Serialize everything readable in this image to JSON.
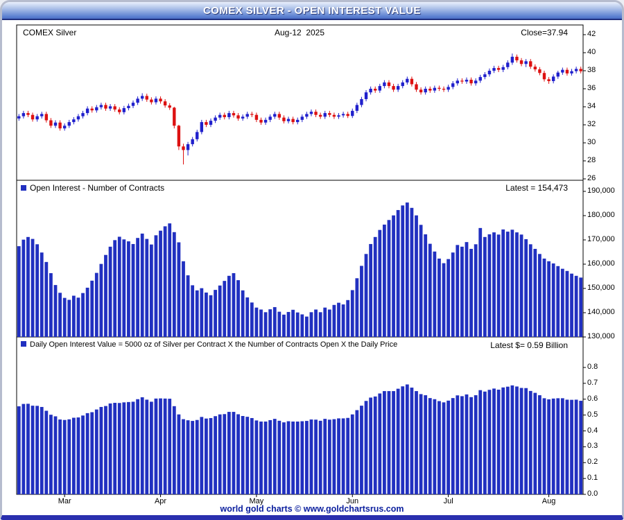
{
  "window": {
    "title": "COMEX SILVER - OPEN INTEREST VALUE"
  },
  "footer": {
    "text": "world gold charts © www.goldchartsrus.com"
  },
  "x_axis": {
    "n_points": 124,
    "month_labels": [
      "Mar",
      "Apr",
      "May",
      "Jun",
      "Jul",
      "Aug"
    ],
    "month_start_indices": [
      10,
      31,
      52,
      73,
      94,
      116
    ]
  },
  "chart_data": [
    {
      "type": "candlestick",
      "title": "COMEX Silver",
      "date_label": "Aug-12  2025",
      "close_label": "Close=37.94",
      "close": 37.94,
      "up_color": "#2020cc",
      "down_color": "#dd1111",
      "ylim": [
        26,
        42
      ],
      "y_axis": {
        "ticks": [
          [
            42,
            "42"
          ],
          [
            40,
            "40"
          ],
          [
            38,
            "38"
          ],
          [
            36,
            "36"
          ],
          [
            34,
            "34"
          ],
          [
            32,
            "32"
          ],
          [
            30,
            "30"
          ],
          [
            28,
            "28"
          ],
          [
            26,
            "26"
          ]
        ]
      },
      "candles": [
        [
          32.7,
          33.2,
          32.45,
          32.95
        ],
        [
          32.95,
          33.55,
          32.7,
          33.3
        ],
        [
          33.3,
          33.55,
          32.85,
          33.1
        ],
        [
          33.1,
          33.35,
          32.35,
          32.6
        ],
        [
          32.6,
          33.2,
          32.35,
          32.95
        ],
        [
          32.95,
          33.45,
          32.7,
          33.2
        ],
        [
          33.2,
          33.45,
          32.25,
          32.5
        ],
        [
          32.5,
          32.75,
          31.65,
          31.9
        ],
        [
          31.9,
          32.5,
          31.65,
          32.25
        ],
        [
          32.25,
          32.5,
          31.35,
          31.6
        ],
        [
          31.6,
          32.15,
          31.35,
          31.9
        ],
        [
          31.9,
          32.55,
          31.65,
          32.3
        ],
        [
          32.3,
          32.85,
          32.05,
          32.6
        ],
        [
          32.6,
          33.2,
          32.35,
          32.95
        ],
        [
          32.95,
          33.55,
          32.7,
          33.3
        ],
        [
          33.3,
          34.05,
          33.05,
          33.8
        ],
        [
          33.8,
          34.05,
          33.35,
          33.6
        ],
        [
          33.6,
          34.2,
          33.35,
          33.95
        ],
        [
          33.95,
          34.45,
          33.7,
          34.2
        ],
        [
          34.2,
          34.45,
          33.55,
          33.8
        ],
        [
          33.8,
          34.3,
          33.55,
          34.05
        ],
        [
          34.05,
          34.3,
          33.45,
          33.7
        ],
        [
          33.7,
          33.95,
          33.15,
          33.4
        ],
        [
          33.4,
          34.1,
          33.15,
          33.85
        ],
        [
          33.85,
          34.35,
          33.6,
          34.1
        ],
        [
          34.1,
          34.7,
          33.85,
          34.45
        ],
        [
          34.45,
          35.15,
          34.2,
          34.9
        ],
        [
          34.9,
          35.5,
          34.65,
          35.2
        ],
        [
          35.2,
          35.45,
          34.55,
          34.8
        ],
        [
          34.8,
          35.05,
          34.25,
          34.5
        ],
        [
          34.5,
          35.15,
          34.25,
          34.9
        ],
        [
          34.9,
          35.15,
          34.35,
          34.6
        ],
        [
          34.6,
          34.85,
          33.9,
          34.15
        ],
        [
          34.15,
          34.4,
          33.65,
          33.9
        ],
        [
          33.9,
          34.0,
          31.6,
          31.9
        ],
        [
          31.9,
          32.0,
          29.2,
          29.6
        ],
        [
          29.6,
          29.9,
          27.6,
          29.2
        ],
        [
          29.2,
          30.1,
          28.6,
          29.85
        ],
        [
          29.85,
          30.65,
          29.6,
          30.4
        ],
        [
          30.4,
          31.45,
          30.15,
          31.2
        ],
        [
          31.2,
          32.55,
          30.95,
          32.3
        ],
        [
          32.3,
          32.55,
          31.75,
          32.0
        ],
        [
          32.0,
          32.7,
          31.75,
          32.45
        ],
        [
          32.45,
          33.05,
          32.2,
          32.8
        ],
        [
          32.8,
          33.35,
          32.55,
          33.1
        ],
        [
          33.1,
          33.35,
          32.6,
          32.85
        ],
        [
          32.85,
          33.55,
          32.6,
          33.3
        ],
        [
          33.3,
          33.55,
          32.8,
          33.05
        ],
        [
          33.05,
          33.3,
          32.45,
          32.7
        ],
        [
          32.7,
          33.15,
          32.45,
          32.9
        ],
        [
          32.9,
          33.45,
          32.65,
          33.2
        ],
        [
          33.2,
          33.45,
          32.85,
          33.1
        ],
        [
          33.1,
          33.35,
          32.3,
          32.55
        ],
        [
          32.55,
          32.8,
          32.0,
          32.25
        ],
        [
          32.25,
          32.8,
          32.0,
          32.55
        ],
        [
          32.55,
          33.15,
          32.3,
          32.9
        ],
        [
          32.9,
          33.45,
          32.65,
          33.2
        ],
        [
          33.2,
          33.45,
          32.55,
          32.8
        ],
        [
          32.8,
          33.05,
          32.15,
          32.4
        ],
        [
          32.4,
          32.9,
          32.15,
          32.65
        ],
        [
          32.65,
          32.9,
          32.05,
          32.3
        ],
        [
          32.3,
          32.8,
          32.05,
          32.55
        ],
        [
          32.55,
          33.15,
          32.3,
          32.9
        ],
        [
          32.9,
          33.45,
          32.65,
          33.2
        ],
        [
          33.2,
          33.7,
          32.95,
          33.45
        ],
        [
          33.45,
          33.7,
          32.85,
          33.1
        ],
        [
          33.1,
          33.35,
          32.65,
          32.9
        ],
        [
          32.9,
          33.55,
          32.65,
          33.3
        ],
        [
          33.3,
          33.55,
          32.85,
          33.1
        ],
        [
          33.1,
          33.35,
          32.65,
          32.9
        ],
        [
          32.9,
          33.3,
          32.65,
          33.05
        ],
        [
          33.05,
          33.45,
          32.8,
          33.2
        ],
        [
          33.2,
          33.45,
          32.75,
          32.98
        ],
        [
          32.98,
          33.8,
          32.75,
          33.55
        ],
        [
          33.55,
          34.45,
          33.3,
          34.2
        ],
        [
          34.2,
          35.1,
          33.95,
          34.85
        ],
        [
          34.85,
          35.85,
          34.6,
          35.6
        ],
        [
          35.6,
          36.25,
          35.35,
          36.0
        ],
        [
          36.0,
          36.25,
          35.55,
          35.8
        ],
        [
          35.8,
          36.55,
          35.55,
          36.3
        ],
        [
          36.3,
          36.95,
          36.05,
          36.7
        ],
        [
          36.7,
          36.95,
          36.05,
          36.3
        ],
        [
          36.3,
          36.55,
          35.65,
          35.9
        ],
        [
          35.9,
          36.55,
          35.65,
          36.3
        ],
        [
          36.3,
          36.95,
          36.05,
          36.7
        ],
        [
          36.7,
          37.35,
          36.45,
          37.1
        ],
        [
          37.1,
          37.35,
          36.25,
          36.5
        ],
        [
          36.5,
          36.75,
          35.65,
          35.9
        ],
        [
          35.9,
          36.15,
          35.35,
          35.6
        ],
        [
          35.6,
          36.25,
          35.35,
          36.0
        ],
        [
          36.0,
          36.25,
          35.55,
          35.8
        ],
        [
          35.8,
          36.35,
          35.55,
          36.1
        ],
        [
          36.1,
          36.35,
          35.75,
          36.0
        ],
        [
          36.0,
          36.25,
          35.65,
          35.9
        ],
        [
          35.9,
          36.45,
          35.65,
          36.2
        ],
        [
          36.2,
          36.85,
          35.95,
          36.6
        ],
        [
          36.6,
          37.15,
          36.35,
          36.9
        ],
        [
          36.9,
          37.15,
          36.55,
          36.8
        ],
        [
          36.8,
          37.25,
          36.55,
          37.0
        ],
        [
          37.0,
          37.25,
          36.35,
          36.6
        ],
        [
          36.6,
          37.15,
          36.35,
          36.9
        ],
        [
          36.9,
          37.55,
          36.65,
          37.3
        ],
        [
          37.3,
          37.85,
          37.05,
          37.6
        ],
        [
          37.6,
          38.25,
          37.35,
          38.0
        ],
        [
          38.0,
          38.55,
          37.75,
          38.3
        ],
        [
          38.3,
          38.55,
          37.85,
          38.1
        ],
        [
          38.1,
          38.65,
          37.85,
          38.4
        ],
        [
          38.4,
          39.15,
          38.15,
          38.9
        ],
        [
          38.9,
          39.9,
          38.65,
          39.55
        ],
        [
          39.55,
          39.8,
          38.9,
          39.15
        ],
        [
          39.15,
          39.4,
          38.5,
          38.75
        ],
        [
          38.75,
          39.3,
          38.4,
          39.05
        ],
        [
          39.05,
          39.3,
          38.2,
          38.45
        ],
        [
          38.45,
          38.7,
          37.9,
          38.15
        ],
        [
          38.15,
          38.4,
          37.5,
          37.75
        ],
        [
          37.75,
          38.0,
          36.8,
          37.05
        ],
        [
          37.05,
          37.3,
          36.55,
          36.85
        ],
        [
          36.85,
          37.6,
          36.6,
          37.35
        ],
        [
          37.35,
          38.0,
          37.1,
          37.8
        ],
        [
          37.8,
          38.35,
          37.55,
          38.1
        ],
        [
          38.1,
          38.35,
          37.45,
          37.7
        ],
        [
          37.7,
          38.2,
          37.45,
          37.95
        ],
        [
          37.95,
          38.45,
          37.7,
          38.2
        ],
        [
          38.2,
          38.45,
          37.7,
          37.94
        ]
      ]
    },
    {
      "type": "bar",
      "title": "Open Interest - Number of Contracts",
      "latest_label": "Latest = 154,473",
      "latest": 154473,
      "bar_color": "#2130c0",
      "ylim": [
        130000,
        190000
      ],
      "y_axis": {
        "ticks": [
          [
            190000,
            "190,000"
          ],
          [
            180000,
            "180,000"
          ],
          [
            170000,
            "170,000"
          ],
          [
            160000,
            "160,000"
          ],
          [
            150000,
            "150,000"
          ],
          [
            140000,
            "140,000"
          ],
          [
            130000,
            "130,000"
          ]
        ]
      },
      "values": [
        167400,
        170100,
        171200,
        170400,
        168200,
        164800,
        160900,
        156300,
        151400,
        148200,
        146100,
        145300,
        147000,
        146200,
        148100,
        150300,
        153200,
        156400,
        160100,
        163800,
        167200,
        169900,
        171300,
        170200,
        169400,
        168300,
        170800,
        172600,
        170400,
        168100,
        171900,
        173800,
        175600,
        176800,
        173200,
        169000,
        161200,
        155400,
        151300,
        149200,
        150100,
        148300,
        147200,
        149400,
        151200,
        153100,
        155200,
        156300,
        153400,
        149200,
        146300,
        144200,
        142100,
        141300,
        140200,
        141400,
        142300,
        140400,
        139200,
        140300,
        141200,
        140100,
        139300,
        138400,
        140200,
        141300,
        140200,
        142100,
        141300,
        143200,
        144100,
        143400,
        145200,
        149300,
        154200,
        159300,
        164200,
        168300,
        171200,
        174100,
        176300,
        178200,
        180100,
        182300,
        184200,
        185400,
        183200,
        180100,
        176200,
        172300,
        168400,
        165200,
        162300,
        160400,
        162100,
        164800,
        167900,
        167200,
        169100,
        166300,
        168200,
        174900,
        171200,
        172300,
        173100,
        172200,
        174300,
        173400,
        174200,
        173100,
        172200,
        170300,
        168200,
        166300,
        164200,
        162300,
        161200,
        160300,
        159200,
        158100,
        157200,
        156100,
        155200,
        154473
      ]
    },
    {
      "type": "bar",
      "title": "Daily Open Interest Value = 5000 oz of Silver per Contract X the Number of Contracts Open X the Daily Price",
      "latest_label": "Latest $= 0.59 Billion",
      "latest": 0.59,
      "bar_color": "#2130c0",
      "ylim": [
        0,
        0.8
      ],
      "y_axis": {
        "ticks": [
          [
            0.8,
            "0.8"
          ],
          [
            0.7,
            "0.7"
          ],
          [
            0.6,
            "0.6"
          ],
          [
            0.5,
            "0.5"
          ],
          [
            0.4,
            "0.4"
          ],
          [
            0.3,
            "0.3"
          ],
          [
            0.2,
            "0.2"
          ],
          [
            0.1,
            "0.1"
          ],
          [
            0.0,
            "0.0"
          ]
        ]
      },
      "values": [
        0.555,
        0.57,
        0.571,
        0.559,
        0.558,
        0.551,
        0.527,
        0.502,
        0.492,
        0.472,
        0.469,
        0.473,
        0.483,
        0.485,
        0.497,
        0.512,
        0.518,
        0.535,
        0.551,
        0.557,
        0.573,
        0.577,
        0.576,
        0.58,
        0.582,
        0.584,
        0.6,
        0.612,
        0.597,
        0.584,
        0.604,
        0.605,
        0.604,
        0.603,
        0.556,
        0.504,
        0.474,
        0.467,
        0.463,
        0.469,
        0.488,
        0.478,
        0.481,
        0.493,
        0.504,
        0.506,
        0.52,
        0.52,
        0.505,
        0.494,
        0.489,
        0.481,
        0.466,
        0.459,
        0.459,
        0.468,
        0.476,
        0.464,
        0.454,
        0.461,
        0.459,
        0.459,
        0.461,
        0.463,
        0.472,
        0.471,
        0.464,
        0.476,
        0.471,
        0.474,
        0.479,
        0.479,
        0.482,
        0.504,
        0.531,
        0.559,
        0.589,
        0.61,
        0.617,
        0.636,
        0.651,
        0.651,
        0.651,
        0.666,
        0.681,
        0.693,
        0.673,
        0.651,
        0.632,
        0.625,
        0.607,
        0.6,
        0.588,
        0.58,
        0.591,
        0.607,
        0.624,
        0.619,
        0.63,
        0.613,
        0.625,
        0.657,
        0.648,
        0.659,
        0.667,
        0.66,
        0.674,
        0.679,
        0.687,
        0.68,
        0.671,
        0.67,
        0.652,
        0.64,
        0.625,
        0.606,
        0.599,
        0.604,
        0.606,
        0.606,
        0.597,
        0.596,
        0.597,
        0.59
      ]
    }
  ]
}
